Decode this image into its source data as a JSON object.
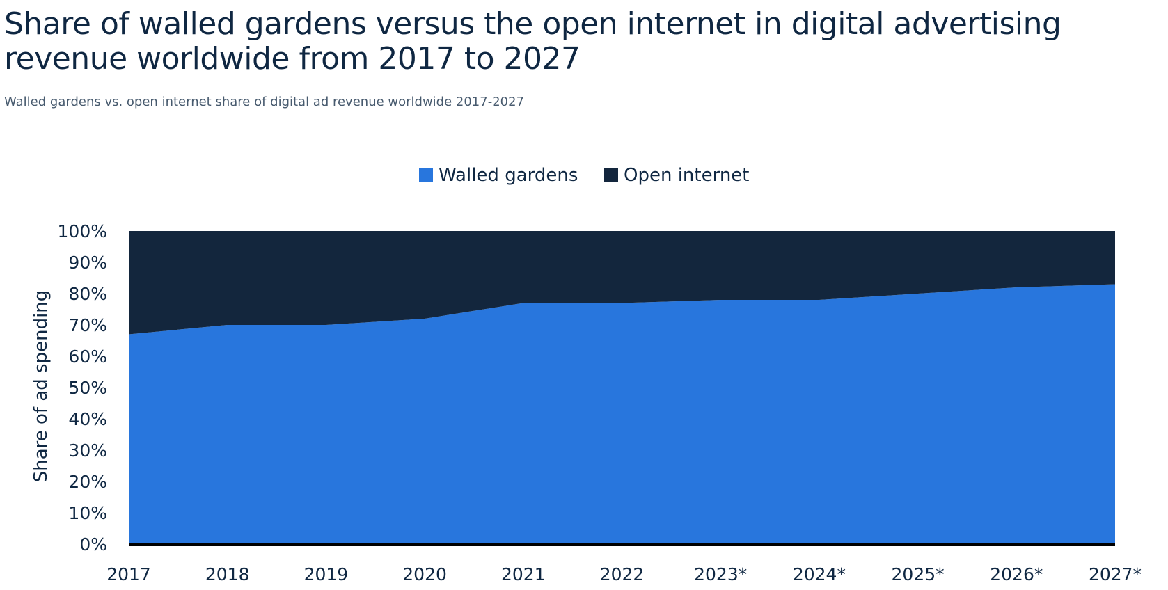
{
  "chart_data": {
    "type": "area",
    "stacked": true,
    "title": "Share of walled gardens versus the open internet in digital advertising revenue worldwide from 2017 to 2027",
    "subtitle": "Walled gardens vs. open internet share of digital ad revenue worldwide 2017-2027",
    "xlabel": "",
    "ylabel": "Share of ad spending",
    "categories": [
      "2017",
      "2018",
      "2019",
      "2020",
      "2021",
      "2022",
      "2023*",
      "2024*",
      "2025*",
      "2026*",
      "2027*"
    ],
    "series": [
      {
        "name": "Walled gardens",
        "color": "#2876dd",
        "values": [
          67,
          70,
          70,
          72,
          77,
          77,
          78,
          78,
          80,
          82,
          83
        ]
      },
      {
        "name": "Open internet",
        "color": "#13263d",
        "values": [
          33,
          30,
          30,
          28,
          23,
          23,
          22,
          22,
          20,
          18,
          17
        ]
      }
    ],
    "ylim": [
      0,
      100
    ],
    "yticks": [
      "0%",
      "10%",
      "20%",
      "30%",
      "40%",
      "50%",
      "60%",
      "70%",
      "80%",
      "90%",
      "100%"
    ],
    "grid": false,
    "legend_position": "top"
  }
}
